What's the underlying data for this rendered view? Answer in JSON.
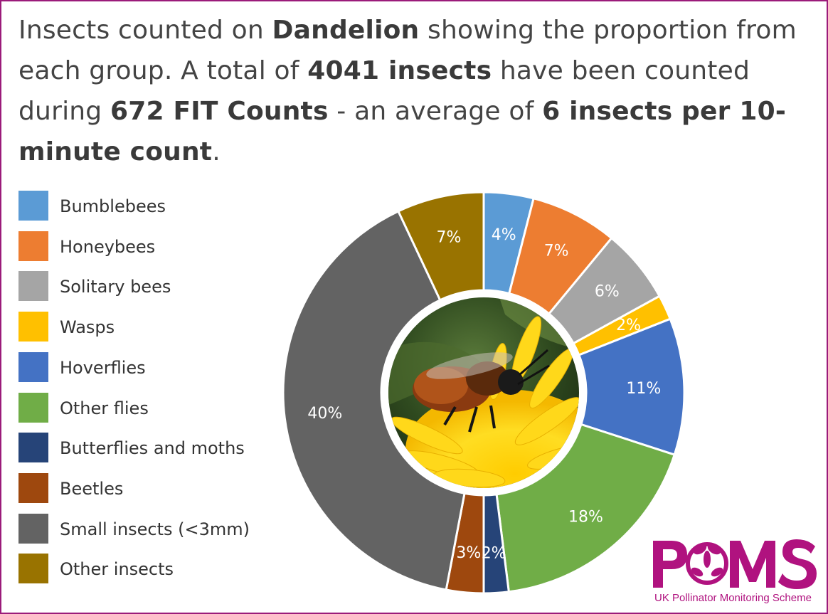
{
  "headline": {
    "p1": "Insects counted on ",
    "plant": "Dandelion",
    "p2": " showing the proportion from each group. A total of ",
    "total": "4041 insects",
    "p3": " have been counted during ",
    "counts": "672 FIT Counts",
    "p4": " - an average of ",
    "average": "6 insects per 10-minute count",
    "p5": "."
  },
  "logo": {
    "text": "POMS",
    "subtitle": "UK Pollinator Monitoring Scheme"
  },
  "chart_data": {
    "type": "pie",
    "title": "Insects counted on Dandelion showing the proportion from each group",
    "categories": [
      "Bumblebees",
      "Honeybees",
      "Solitary bees",
      "Wasps",
      "Hoverflies",
      "Other flies",
      "Butterflies and moths",
      "Beetles",
      "Small insects (<3mm)",
      "Other insects"
    ],
    "values": [
      4,
      7,
      6,
      2,
      11,
      18,
      2,
      3,
      40,
      7
    ],
    "value_labels": [
      "4%",
      "7%",
      "6%",
      "2%",
      "11%",
      "18%",
      "2%",
      "3%",
      "40%",
      "7%"
    ],
    "colors": [
      "#5b9bd5",
      "#ed7d31",
      "#a5a5a5",
      "#ffc000",
      "#4472c4",
      "#70ad47",
      "#264478",
      "#9e480e",
      "#636363",
      "#997300"
    ],
    "legend_position": "left"
  }
}
